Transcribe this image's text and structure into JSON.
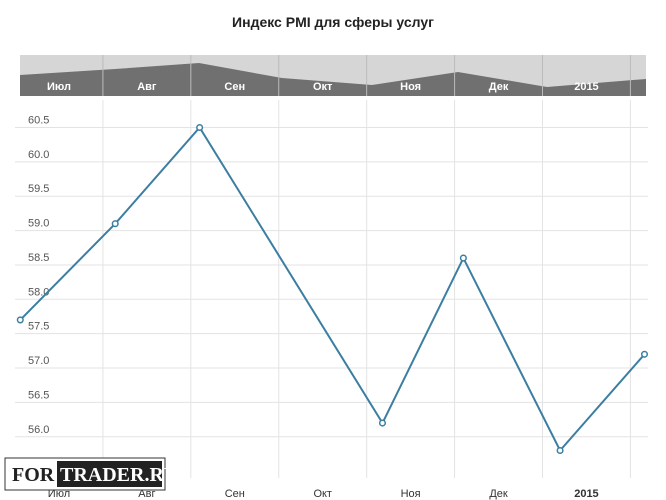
{
  "chart_data": {
    "type": "line",
    "title": "Индекс PMI для сферы услуг",
    "x": [
      0.06,
      1.14,
      2.1,
      4.18,
      5.1,
      6.2,
      7.16
    ],
    "series": [
      {
        "name": "Индекс PMI для сферы услуг",
        "color": "#3b7ea1",
        "values": [
          57.7,
          59.1,
          60.5,
          56.2,
          58.6,
          55.8,
          57.2
        ]
      }
    ],
    "xlim": [
      0,
      7.2
    ],
    "xticks": [
      {
        "value": 0.5,
        "label": "Июл"
      },
      {
        "value": 1.5,
        "label": "Авг"
      },
      {
        "value": 2.5,
        "label": "Сен"
      },
      {
        "value": 3.5,
        "label": "Окт"
      },
      {
        "value": 4.5,
        "label": "Ноя"
      },
      {
        "value": 5.5,
        "label": "Дек"
      },
      {
        "value": 6.5,
        "label": "2015"
      }
    ],
    "ylim": [
      55.4,
      60.9
    ],
    "yticks": [
      {
        "value": 56,
        "label": "56.0"
      },
      {
        "value": 56.5,
        "label": "56.5"
      },
      {
        "value": 57,
        "label": "57.0"
      },
      {
        "value": 57.5,
        "label": "57.5"
      },
      {
        "value": 58,
        "label": "58.0"
      },
      {
        "value": 58.5,
        "label": "58.5"
      },
      {
        "value": 59,
        "label": "59.0"
      },
      {
        "value": 59.5,
        "label": "59.5"
      },
      {
        "value": 60,
        "label": "60.0"
      },
      {
        "value": 60.5,
        "label": "60.5"
      }
    ],
    "grid": true,
    "watermark": {
      "left": "FOR",
      "right": "TRADER.RU"
    }
  }
}
